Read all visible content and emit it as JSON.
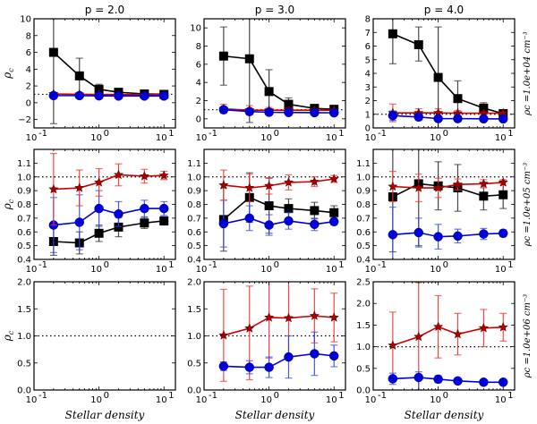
{
  "figure": {
    "column_titles": [
      "p = 2.0",
      "p = 3.0",
      "p = 4.0"
    ],
    "row_labels": [
      "ρc =1.0e+04 cm⁻³",
      "ρc =1.0e+05 cm⁻³",
      "ρc =1.0e+06 cm⁻³"
    ],
    "xlabel": "Stellar density",
    "ylabel": "ρc",
    "reference_line": 1.0
  },
  "colors": {
    "black_series": "#000000",
    "blue_series": "#0000dd",
    "red_series": "#cc0000",
    "blue_errbar": "#3344ee",
    "red_errbar": "#ee3333"
  },
  "chart_data": [
    {
      "type": "line",
      "title": "p = 2.0",
      "row": 0,
      "col": 0,
      "xscale": "log",
      "xlim": [
        0.1,
        15
      ],
      "ylim": [
        -3,
        10
      ],
      "xticks": [
        {
          "v": 0.1,
          "label": "10⁻¹"
        },
        {
          "v": 1,
          "label": "10⁰"
        },
        {
          "v": 10,
          "label": "10¹"
        }
      ],
      "yticks": [
        -2,
        0,
        2,
        4,
        6,
        8,
        10
      ],
      "ytick_labels": [
        "−2",
        "0",
        "2",
        "4",
        "6",
        "8",
        "10"
      ],
      "ylabel": "ρc",
      "xlabel": "",
      "x": [
        0.2,
        0.5,
        1,
        2,
        5,
        10
      ],
      "series": [
        {
          "name": "black",
          "marker": "square",
          "values": [
            6.0,
            3.2,
            1.6,
            1.25,
            1.05,
            1.0
          ],
          "err_lo": [
            8.5,
            2.1,
            0.6,
            0.2,
            0.1,
            0.1
          ],
          "err_hi": [
            4.0,
            2.1,
            0.6,
            0.2,
            0.1,
            0.1
          ]
        },
        {
          "name": "red",
          "marker": "star",
          "values": [
            1.05,
            1.0,
            0.98,
            0.98,
            0.97,
            0.97
          ],
          "err_lo": [
            0.1,
            0.05,
            0.05,
            0.05,
            0.03,
            0.03
          ],
          "err_hi": [
            0.1,
            0.05,
            0.05,
            0.05,
            0.03,
            0.03
          ]
        },
        {
          "name": "blue",
          "marker": "circle",
          "values": [
            0.85,
            0.85,
            0.82,
            0.8,
            0.8,
            0.8
          ],
          "err_lo": [
            0.1,
            0.05,
            0.05,
            0.05,
            0.05,
            0.05
          ],
          "err_hi": [
            0.1,
            0.05,
            0.05,
            0.05,
            0.05,
            0.05
          ]
        }
      ]
    },
    {
      "type": "line",
      "title": "p = 3.0",
      "row": 0,
      "col": 1,
      "xscale": "log",
      "xlim": [
        0.1,
        15
      ],
      "ylim": [
        -1,
        11
      ],
      "xticks": [
        {
          "v": 0.1,
          "label": "10⁻¹"
        },
        {
          "v": 1,
          "label": "10⁰"
        },
        {
          "v": 10,
          "label": "10¹"
        }
      ],
      "yticks": [
        0,
        2,
        4,
        6,
        8,
        10
      ],
      "ytick_labels": [
        "0",
        "2",
        "4",
        "6",
        "8",
        "10"
      ],
      "x": [
        0.2,
        0.5,
        1,
        2,
        5,
        10
      ],
      "series": [
        {
          "name": "black",
          "marker": "square",
          "values": [
            6.9,
            6.6,
            3.0,
            1.6,
            1.15,
            1.05
          ],
          "err_lo": [
            3.2,
            7.0,
            2.3,
            0.6,
            0.2,
            0.15
          ],
          "err_hi": [
            3.2,
            5.0,
            2.4,
            0.7,
            0.2,
            0.15
          ]
        },
        {
          "name": "red",
          "marker": "star",
          "values": [
            1.1,
            0.95,
            0.95,
            0.95,
            0.95,
            0.95
          ],
          "err_lo": [
            0.5,
            0.5,
            0.3,
            0.2,
            0.1,
            0.1
          ],
          "err_hi": [
            0.5,
            0.5,
            0.3,
            0.2,
            0.1,
            0.1
          ]
        },
        {
          "name": "blue",
          "marker": "circle",
          "values": [
            1.0,
            0.8,
            0.72,
            0.7,
            0.68,
            0.66
          ],
          "err_lo": [
            0.3,
            0.3,
            0.2,
            0.1,
            0.1,
            0.05
          ],
          "err_hi": [
            0.3,
            0.3,
            0.2,
            0.1,
            0.1,
            0.05
          ]
        }
      ]
    },
    {
      "type": "line",
      "title": "p = 4.0",
      "row": 0,
      "col": 2,
      "xscale": "log",
      "xlim": [
        0.1,
        15
      ],
      "ylim": [
        0,
        8
      ],
      "xticks": [
        {
          "v": 0.1,
          "label": "10⁻¹"
        },
        {
          "v": 1,
          "label": "10⁰"
        },
        {
          "v": 10,
          "label": "10¹"
        }
      ],
      "yticks": [
        0,
        1,
        2,
        3,
        4,
        5,
        6,
        7,
        8
      ],
      "ytick_labels": [
        "0",
        "1",
        "2",
        "3",
        "4",
        "5",
        "6",
        "7",
        "8"
      ],
      "row_label": "ρc =1.0e+04 cm⁻³",
      "x": [
        0.2,
        0.5,
        1,
        2,
        5,
        10
      ],
      "series": [
        {
          "name": "black",
          "marker": "square",
          "values": [
            6.9,
            6.1,
            3.7,
            2.15,
            1.45,
            1.05
          ],
          "err_lo": [
            2.2,
            1.2,
            3.7,
            1.3,
            0.4,
            0.15
          ],
          "err_hi": [
            2.2,
            1.3,
            3.7,
            1.3,
            0.4,
            0.15
          ]
        },
        {
          "name": "red",
          "marker": "star",
          "values": [
            1.1,
            1.1,
            1.1,
            1.08,
            1.08,
            1.08
          ],
          "err_lo": [
            0.65,
            0.3,
            0.3,
            0.2,
            0.1,
            0.1
          ],
          "err_hi": [
            0.65,
            0.3,
            0.3,
            0.2,
            0.1,
            0.1
          ]
        },
        {
          "name": "blue",
          "marker": "circle",
          "values": [
            0.9,
            0.8,
            0.68,
            0.68,
            0.67,
            0.66
          ],
          "err_lo": [
            0.35,
            0.25,
            0.15,
            0.1,
            0.08,
            0.05
          ],
          "err_hi": [
            0.35,
            0.25,
            0.15,
            0.1,
            0.08,
            0.05
          ]
        }
      ]
    },
    {
      "type": "line",
      "title": "",
      "row": 1,
      "col": 0,
      "xscale": "log",
      "xlim": [
        0.1,
        15
      ],
      "ylim": [
        0.4,
        1.2
      ],
      "xticks": [
        {
          "v": 0.1,
          "label": "10⁻¹"
        },
        {
          "v": 1,
          "label": "10⁰"
        },
        {
          "v": 10,
          "label": "10¹"
        }
      ],
      "yticks": [
        0.4,
        0.5,
        0.6,
        0.7,
        0.8,
        0.9,
        1.0,
        1.1
      ],
      "ytick_labels": [
        "0.4",
        "0.5",
        "0.6",
        "0.7",
        "0.8",
        "0.9",
        "1.0",
        "1.1"
      ],
      "ylabel": "ρc",
      "x": [
        0.2,
        0.5,
        1,
        2,
        5,
        10
      ],
      "series": [
        {
          "name": "black",
          "marker": "square",
          "values": [
            0.53,
            0.52,
            0.59,
            0.635,
            0.665,
            0.68
          ],
          "err_lo": [
            0.1,
            0.08,
            0.06,
            0.07,
            0.04,
            0.03
          ],
          "err_hi": [
            0.1,
            0.08,
            0.06,
            0.07,
            0.04,
            0.03
          ]
        },
        {
          "name": "blue",
          "marker": "circle",
          "values": [
            0.65,
            0.67,
            0.77,
            0.73,
            0.77,
            0.77
          ],
          "err_lo": [
            0.2,
            0.2,
            0.13,
            0.09,
            0.06,
            0.05
          ],
          "err_hi": [
            0.2,
            0.2,
            0.13,
            0.09,
            0.06,
            0.05
          ]
        },
        {
          "name": "red",
          "marker": "star",
          "values": [
            0.91,
            0.92,
            0.96,
            1.015,
            1.005,
            1.01
          ],
          "err_lo": [
            0.26,
            0.13,
            0.1,
            0.08,
            0.05,
            0.03
          ],
          "err_hi": [
            0.26,
            0.13,
            0.1,
            0.08,
            0.05,
            0.03
          ]
        }
      ]
    },
    {
      "type": "line",
      "title": "",
      "row": 1,
      "col": 1,
      "xscale": "log",
      "xlim": [
        0.1,
        15
      ],
      "ylim": [
        0.4,
        1.2
      ],
      "xticks": [
        {
          "v": 0.1,
          "label": "10⁻¹"
        },
        {
          "v": 1,
          "label": "10⁰"
        },
        {
          "v": 10,
          "label": "10¹"
        }
      ],
      "yticks": [
        0.4,
        0.5,
        0.6,
        0.7,
        0.8,
        0.9,
        1.0,
        1.1
      ],
      "ytick_labels": [
        "0.4",
        "0.5",
        "0.6",
        "0.7",
        "0.8",
        "0.9",
        "1.0",
        "1.1"
      ],
      "x": [
        0.2,
        0.5,
        1,
        2,
        5,
        10
      ],
      "series": [
        {
          "name": "black",
          "marker": "square",
          "values": [
            0.69,
            0.85,
            0.79,
            0.77,
            0.755,
            0.74
          ],
          "err_lo": [
            0.23,
            0.18,
            0.2,
            0.07,
            0.06,
            0.05
          ],
          "err_hi": [
            0.23,
            0.18,
            0.2,
            0.07,
            0.06,
            0.05
          ]
        },
        {
          "name": "blue",
          "marker": "circle",
          "values": [
            0.66,
            0.7,
            0.65,
            0.68,
            0.655,
            0.675
          ],
          "err_lo": [
            0.17,
            0.09,
            0.075,
            0.06,
            0.045,
            0.025
          ],
          "err_hi": [
            0.17,
            0.09,
            0.075,
            0.06,
            0.045,
            0.025
          ]
        },
        {
          "name": "red",
          "marker": "star",
          "values": [
            0.94,
            0.92,
            0.935,
            0.96,
            0.965,
            0.985
          ],
          "err_lo": [
            0.11,
            0.1,
            0.06,
            0.055,
            0.035,
            0.025
          ],
          "err_hi": [
            0.11,
            0.1,
            0.06,
            0.055,
            0.035,
            0.025
          ]
        }
      ]
    },
    {
      "type": "line",
      "title": "",
      "row": 1,
      "col": 2,
      "xscale": "log",
      "xlim": [
        0.1,
        15
      ],
      "ylim": [
        0.4,
        1.2
      ],
      "xticks": [
        {
          "v": 0.1,
          "label": "10⁻¹"
        },
        {
          "v": 1,
          "label": "10⁰"
        },
        {
          "v": 10,
          "label": "10¹"
        }
      ],
      "yticks": [
        0.4,
        0.5,
        0.6,
        0.7,
        0.8,
        0.9,
        1.0,
        1.1
      ],
      "ytick_labels": [
        "0.4",
        "0.5",
        "0.6",
        "0.7",
        "0.8",
        "0.9",
        "1.0",
        "1.1"
      ],
      "row_label": "ρc =1.0e+05 cm⁻³",
      "x": [
        0.2,
        0.5,
        1,
        2,
        5,
        10
      ],
      "series": [
        {
          "name": "black",
          "marker": "square",
          "values": [
            0.855,
            0.95,
            0.935,
            0.92,
            0.86,
            0.87
          ],
          "err_lo": [
            0.4,
            0.45,
            0.175,
            0.17,
            0.1,
            0.1
          ],
          "err_hi": [
            0.4,
            0.45,
            0.175,
            0.17,
            0.1,
            0.1
          ]
        },
        {
          "name": "red",
          "marker": "star",
          "values": [
            0.93,
            0.92,
            0.92,
            0.945,
            0.95,
            0.96
          ],
          "err_lo": [
            0.11,
            0.1,
            0.07,
            0.04,
            0.03,
            0.02
          ],
          "err_hi": [
            0.11,
            0.1,
            0.07,
            0.04,
            0.03,
            0.02
          ]
        },
        {
          "name": "blue",
          "marker": "circle",
          "values": [
            0.58,
            0.595,
            0.565,
            0.57,
            0.585,
            0.59
          ],
          "err_lo": [
            0.2,
            0.105,
            0.09,
            0.05,
            0.04,
            0.025
          ],
          "err_hi": [
            0.2,
            0.105,
            0.09,
            0.05,
            0.04,
            0.025
          ]
        }
      ]
    },
    {
      "type": "line",
      "title": "",
      "row": 2,
      "col": 0,
      "xscale": "log",
      "xlim": [
        0.1,
        15
      ],
      "ylim": [
        0,
        2
      ],
      "xticks": [
        {
          "v": 0.1,
          "label": "10⁻¹"
        },
        {
          "v": 1,
          "label": "10⁰"
        },
        {
          "v": 10,
          "label": "10¹"
        }
      ],
      "yticks": [
        0,
        0.5,
        1,
        1.5,
        2
      ],
      "ytick_labels": [
        "0.0",
        "0.5",
        "1.0",
        "1.5",
        "2.0"
      ],
      "ylabel": "ρc",
      "xlabel": "Stellar density",
      "x": [],
      "series": []
    },
    {
      "type": "line",
      "title": "",
      "row": 2,
      "col": 1,
      "xscale": "log",
      "xlim": [
        0.1,
        15
      ],
      "ylim": [
        0,
        2
      ],
      "xticks": [
        {
          "v": 0.1,
          "label": "10⁻¹"
        },
        {
          "v": 1,
          "label": "10⁰"
        },
        {
          "v": 10,
          "label": "10¹"
        }
      ],
      "yticks": [
        0,
        0.5,
        1,
        1.5,
        2
      ],
      "ytick_labels": [
        "0.0",
        "0.5",
        "1.0",
        "1.5",
        "2.0"
      ],
      "xlabel": "Stellar density",
      "x": [
        0.2,
        0.5,
        1,
        2,
        5,
        10
      ],
      "series": [
        {
          "name": "red",
          "marker": "star",
          "values": [
            1.01,
            1.14,
            1.34,
            1.33,
            1.37,
            1.34
          ],
          "err_lo": [
            0.85,
            0.95,
            0.75,
            0.75,
            0.5,
            0.45
          ],
          "err_hi": [
            0.85,
            0.78,
            0.75,
            0.75,
            0.5,
            0.45
          ]
        },
        {
          "name": "blue",
          "marker": "circle",
          "values": [
            0.44,
            0.42,
            0.42,
            0.61,
            0.67,
            0.63
          ],
          "err_lo": [
            0.08,
            0.12,
            0.19,
            0.39,
            0.4,
            0.2
          ],
          "err_hi": [
            0.08,
            0.12,
            0.19,
            0.39,
            0.4,
            0.2
          ]
        }
      ]
    },
    {
      "type": "line",
      "title": "",
      "row": 2,
      "col": 2,
      "xscale": "log",
      "xlim": [
        0.1,
        15
      ],
      "ylim": [
        0,
        2.5
      ],
      "xticks": [
        {
          "v": 0.1,
          "label": "10⁻¹"
        },
        {
          "v": 1,
          "label": "10⁰"
        },
        {
          "v": 10,
          "label": "10¹"
        }
      ],
      "yticks": [
        0,
        0.5,
        1,
        1.5,
        2,
        2.5
      ],
      "ytick_labels": [
        "0.0",
        "0.5",
        "1.0",
        "1.5",
        "2.0",
        "2.5"
      ],
      "row_label": "ρc =1.0e+06 cm⁻³",
      "xlabel": "Stellar density",
      "x": [
        0.2,
        0.5,
        1,
        2,
        5,
        10
      ],
      "series": [
        {
          "name": "red",
          "marker": "star",
          "values": [
            1.03,
            1.23,
            1.46,
            1.29,
            1.43,
            1.45
          ],
          "err_lo": [
            0.77,
            1.23,
            0.72,
            0.48,
            0.43,
            0.32
          ],
          "err_hi": [
            0.77,
            1.25,
            0.72,
            0.48,
            0.43,
            0.32
          ]
        },
        {
          "name": "blue",
          "marker": "circle",
          "values": [
            0.26,
            0.29,
            0.25,
            0.21,
            0.18,
            0.18
          ],
          "err_lo": [
            0.13,
            0.29,
            0.08,
            0.03,
            0.02,
            0.02
          ],
          "err_hi": [
            0.13,
            0.13,
            0.08,
            0.03,
            0.02,
            0.02
          ]
        }
      ]
    }
  ]
}
